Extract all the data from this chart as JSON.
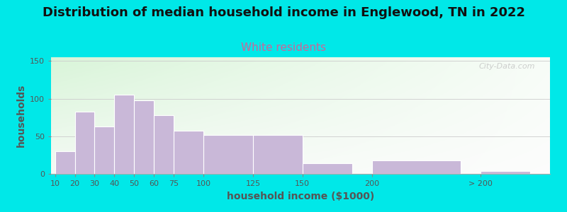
{
  "title": "Distribution of median household income in Englewood, TN in 2022",
  "subtitle": "White residents",
  "xlabel": "household income ($1000)",
  "ylabel": "households",
  "bar_color": "#c9b8d8",
  "bar_edgecolor": "#ffffff",
  "outer_bg": "#00e8e8",
  "categories": [
    "10",
    "20",
    "30",
    "40",
    "50",
    "60",
    "75",
    "100",
    "125",
    "150",
    "200",
    "> 200"
  ],
  "values": [
    30,
    83,
    63,
    105,
    98,
    78,
    57,
    52,
    52,
    14,
    18,
    4
  ],
  "bar_lefts": [
    0,
    10,
    20,
    30,
    40,
    50,
    60,
    75,
    100,
    125,
    160,
    215
  ],
  "bar_widths": [
    10,
    10,
    10,
    10,
    10,
    10,
    15,
    25,
    25,
    25,
    45,
    25
  ],
  "xlim": [
    -2,
    250
  ],
  "ylim": [
    0,
    155
  ],
  "yticks": [
    0,
    50,
    100,
    150
  ],
  "watermark": "City-Data.com",
  "title_fontsize": 13,
  "subtitle_fontsize": 11,
  "subtitle_color": "#cc6699",
  "title_color": "#111111",
  "axis_label_fontsize": 10,
  "tick_fontsize": 8,
  "ylabel_color": "#555555",
  "xlabel_color": "#555555"
}
